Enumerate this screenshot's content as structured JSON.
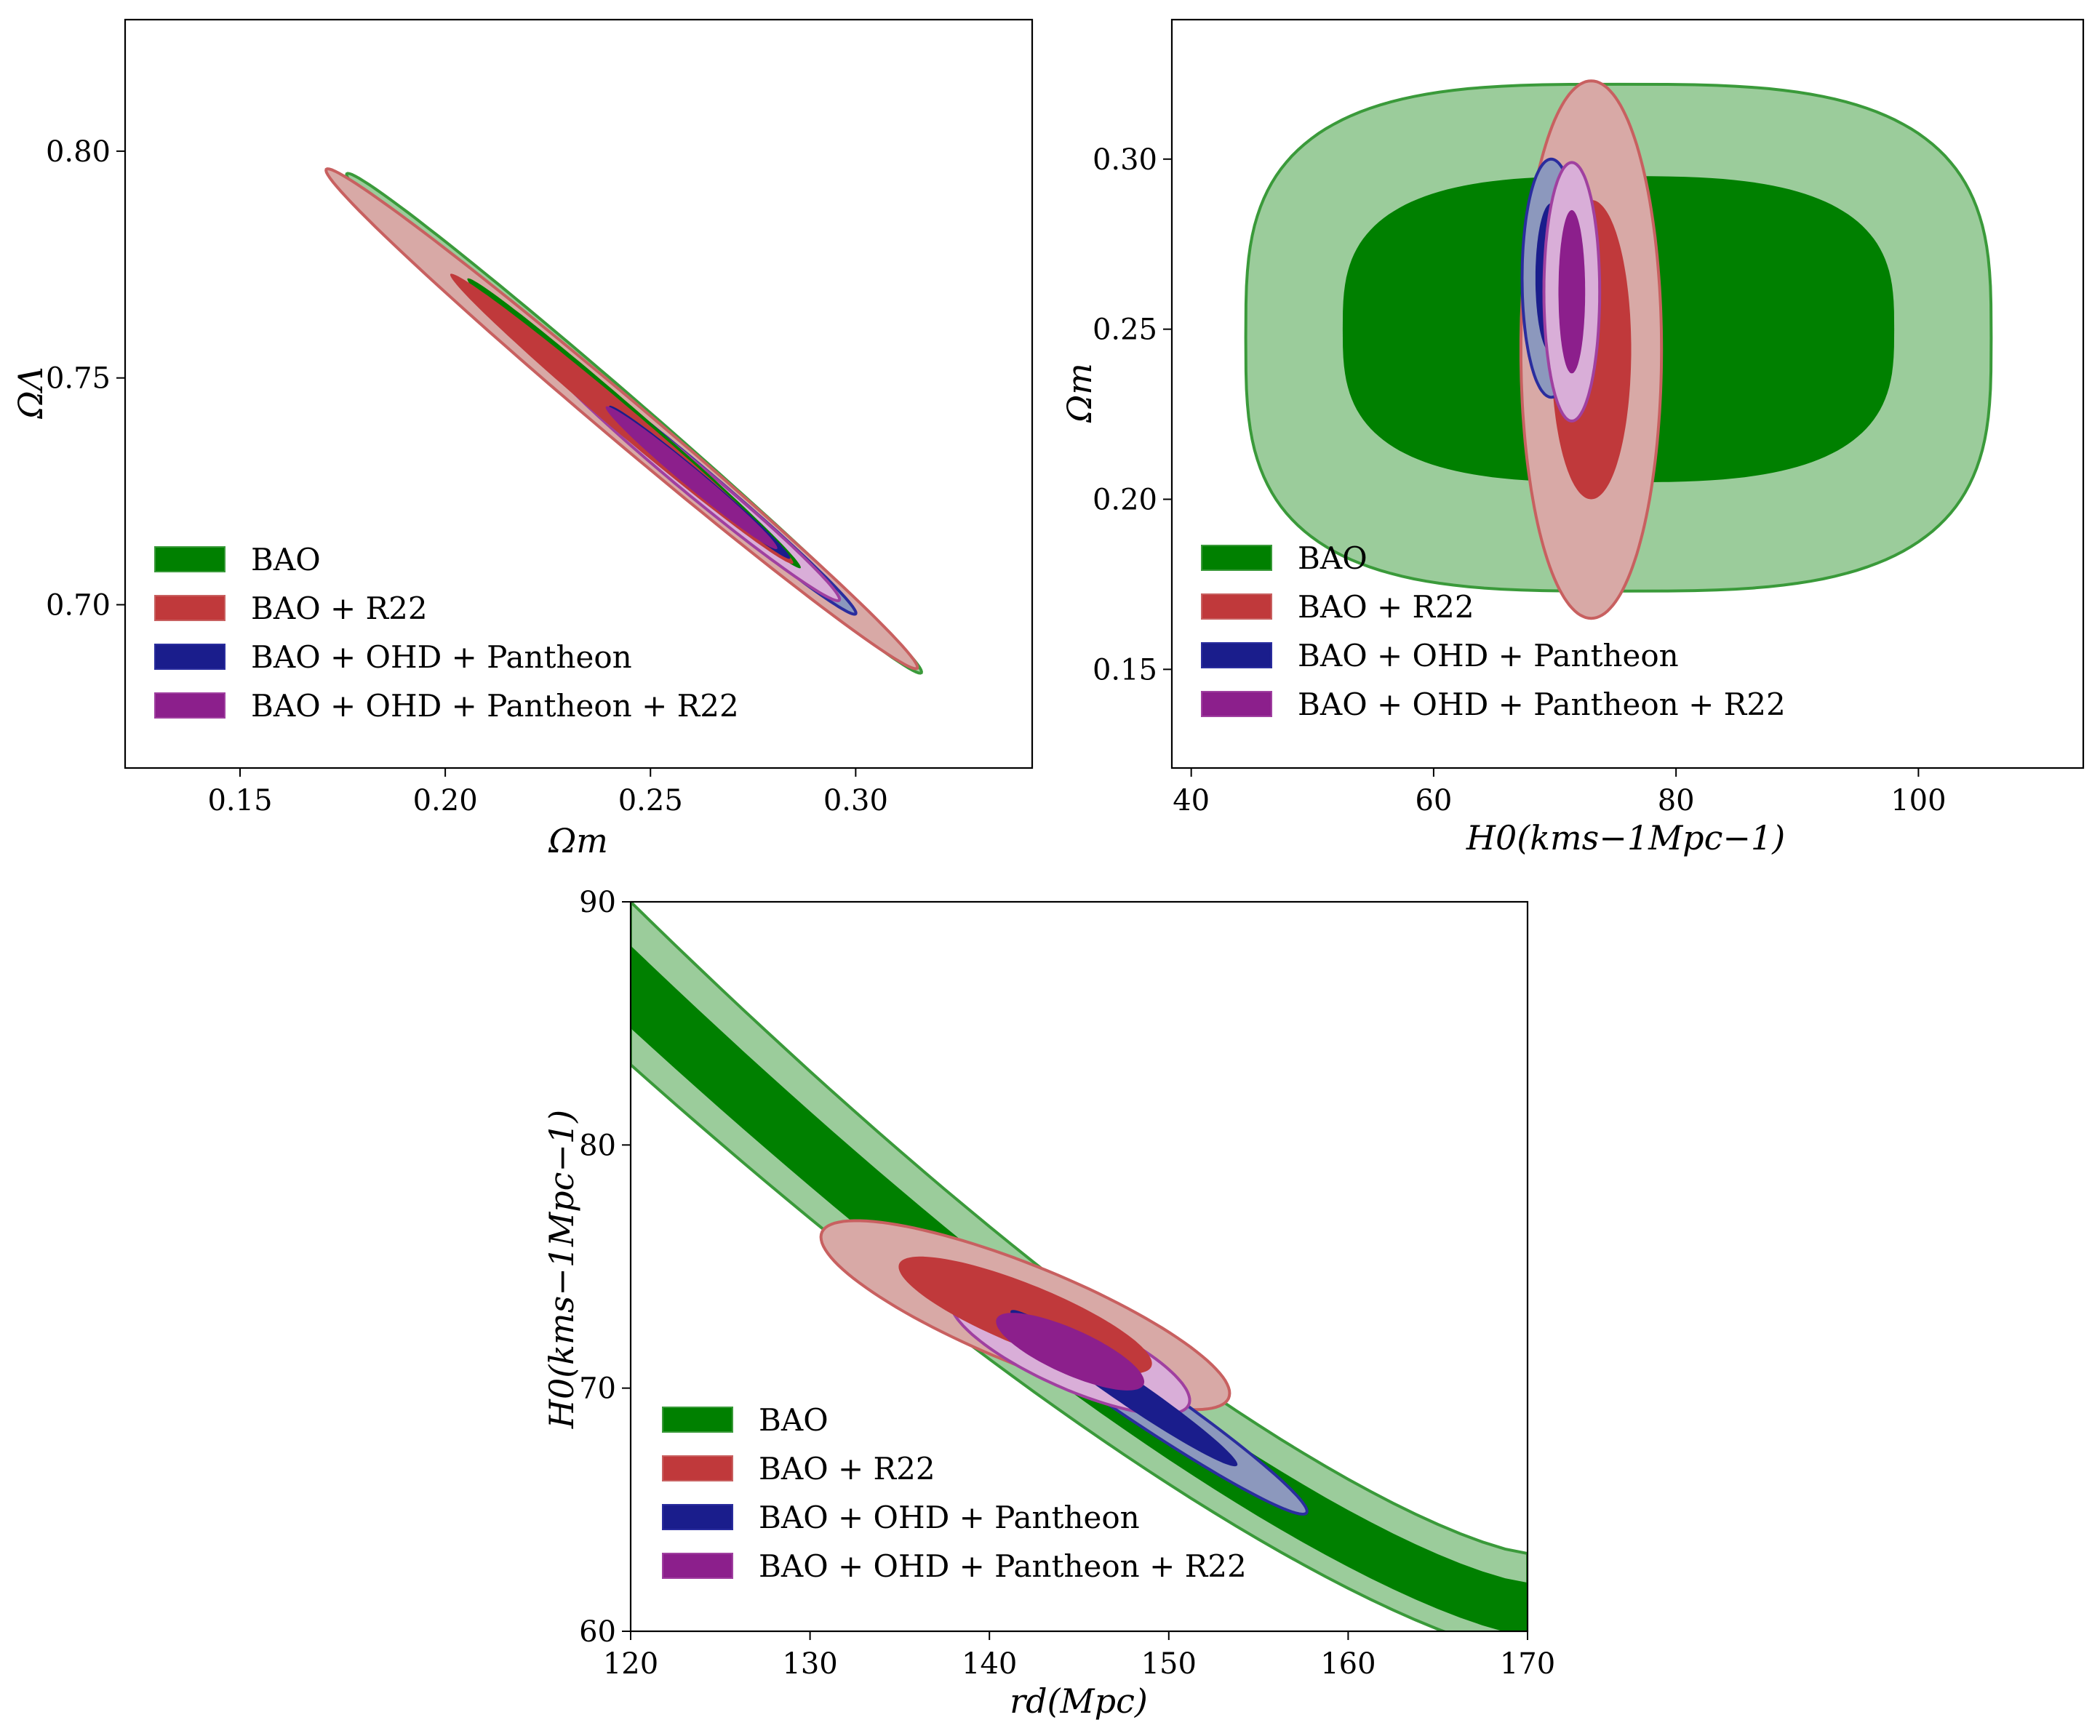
{
  "colors": {
    "BAO": {
      "fill2": "#9bcc9b",
      "fill1": "#008000",
      "edge": "#3a9a3a"
    },
    "BAO + R22": {
      "fill2": "#d8a9a6",
      "fill1": "#c0393b",
      "edge": "#c86060"
    },
    "BAO + OHD + Pantheon": {
      "fill2": "#8c98bd",
      "fill1": "#1a1d8c",
      "edge": "#2a2d9e"
    },
    "BAO + OHD + Pantheon + R22": {
      "fill2": "#d9aed8",
      "fill1": "#8c1f8c",
      "edge": "#a040a0"
    }
  },
  "chart_data": [
    {
      "type": "contour",
      "id": "panel-omega",
      "xlabel": "Ωm",
      "ylabel": "ΩΛ",
      "xlim": [
        0.122,
        0.343
      ],
      "ylim": [
        0.664,
        0.829
      ],
      "xticks": [
        0.15,
        0.2,
        0.25,
        0.3
      ],
      "xtick_labels": [
        "0.15",
        "0.20",
        "0.25",
        "0.30"
      ],
      "yticks": [
        0.7,
        0.75,
        0.8
      ],
      "ytick_labels": [
        "0.70",
        "0.75",
        "0.80"
      ],
      "legend_position": "lower-left",
      "legend": [
        "BAO",
        "BAO + R22",
        "BAO + OHD + Pantheon",
        "BAO + OHD + Pantheon + R22"
      ],
      "series": [
        {
          "name": "BAO",
          "center": [
            0.246,
            0.74
          ],
          "half_major": [
            0.07,
            -0.055
          ],
          "half_minor": [
            0.0027,
            0.0033
          ],
          "levels": [
            1.0,
            1.75
          ]
        },
        {
          "name": "BAO + R22",
          "center": [
            0.243,
            0.741
          ],
          "half_major": [
            0.072,
            -0.055
          ],
          "half_minor": [
            0.003,
            0.0037
          ],
          "levels": [
            1.0,
            1.75
          ]
        },
        {
          "name": "BAO + OHD + Pantheon",
          "center": [
            0.262,
            0.727
          ],
          "half_major": [
            0.038,
            -0.029
          ],
          "half_minor": [
            0.002,
            0.0024
          ],
          "levels": [
            1.0,
            1.75
          ]
        },
        {
          "name": "BAO + OHD + Pantheon + R22",
          "center": [
            0.26,
            0.728
          ],
          "half_major": [
            0.036,
            -0.027
          ],
          "half_minor": [
            0.0022,
            0.0026
          ],
          "levels": [
            0.9,
            1.65
          ]
        }
      ]
    },
    {
      "type": "contour",
      "id": "panel-h0-om",
      "xlabel": "H0(kms−1Mpc−1)",
      "ylabel": "Ωm",
      "xlim": [
        38.4,
        113.6
      ],
      "ylim": [
        0.121,
        0.341
      ],
      "xticks": [
        40,
        60,
        80,
        100
      ],
      "xtick_labels": [
        "40",
        "60",
        "80",
        "100"
      ],
      "yticks": [
        0.15,
        0.2,
        0.25,
        0.3
      ],
      "ytick_labels": [
        "0.15",
        "0.20",
        "0.25",
        "0.30"
      ],
      "legend_position": "lower-left",
      "legend": [
        "BAO",
        "BAO + R22",
        "BAO + OHD + Pantheon",
        "BAO + OHD + Pantheon + R22"
      ],
      "series": [
        {
          "name": "BAO",
          "outer": {
            "x": [
              44.5,
              106
            ],
            "y": [
              0.173,
              0.322
            ]
          },
          "inner": {
            "x": [
              52.5,
              98
            ],
            "y": [
              0.205,
              0.295
            ]
          }
        },
        {
          "name": "BAO + R22",
          "center": [
            73.0,
            0.244
          ],
          "half_x": [
            3.3,
            5.8
          ],
          "half_y": [
            0.044,
            0.079
          ]
        },
        {
          "name": "BAO + OHD + Pantheon",
          "center": [
            69.7,
            0.265
          ],
          "half_x": [
            1.3,
            2.4
          ],
          "half_y": [
            0.022,
            0.035
          ]
        },
        {
          "name": "BAO + OHD + Pantheon + R22",
          "center": [
            71.4,
            0.261
          ],
          "half_x": [
            1.1,
            2.3
          ],
          "half_y": [
            0.024,
            0.038
          ]
        }
      ]
    },
    {
      "type": "contour",
      "id": "panel-rd-h0",
      "xlabel": "rd(Mpc)",
      "ylabel": "H0(kms−1Mpc−1)",
      "xlim": [
        120,
        170
      ],
      "ylim": [
        60,
        90
      ],
      "xticks": [
        120,
        130,
        140,
        150,
        160,
        170
      ],
      "xtick_labels": [
        "120",
        "130",
        "140",
        "150",
        "160",
        "170"
      ],
      "yticks": [
        60,
        70,
        80,
        90
      ],
      "ytick_labels": [
        "60",
        "70",
        "80",
        "90"
      ],
      "legend_position": "lower-left",
      "legend": [
        "BAO",
        "BAO + R22",
        "BAO + OHD + Pantheon",
        "BAO + OHD + Pantheon + R22"
      ],
      "series": [
        {
          "name": "BAO",
          "band_outer": {
            "upper": [
              [
                120,
                90.0
              ],
              [
                170,
                63.2
              ]
            ],
            "lower": [
              [
                120,
                83.3
              ],
              [
                170,
                59.0
              ]
            ]
          },
          "band_inner": {
            "upper": [
              [
                120,
                88.2
              ],
              [
                170,
                62.0
              ]
            ],
            "lower": [
              [
                120,
                84.8
              ],
              [
                170,
                59.8
              ]
            ]
          }
        },
        {
          "name": "BAO + R22",
          "center": [
            142.0,
            73.0
          ],
          "half_major": [
            6.5,
            -1.9
          ],
          "half_minor": [
            0.35,
            1.15
          ],
          "levels": [
            1.0,
            1.75
          ]
        },
        {
          "name": "BAO + OHD + Pantheon",
          "center": [
            147.5,
            70.0
          ],
          "half_major": [
            6.0,
            -3.0
          ],
          "half_minor": [
            0.2,
            0.55
          ],
          "levels": [
            1.0,
            1.7
          ]
        },
        {
          "name": "BAO + OHD + Pantheon + R22",
          "center": [
            144.5,
            71.5
          ],
          "half_major": [
            3.8,
            -1.2
          ],
          "half_minor": [
            0.25,
            0.85
          ],
          "levels": [
            1.0,
            1.75
          ]
        }
      ]
    }
  ]
}
